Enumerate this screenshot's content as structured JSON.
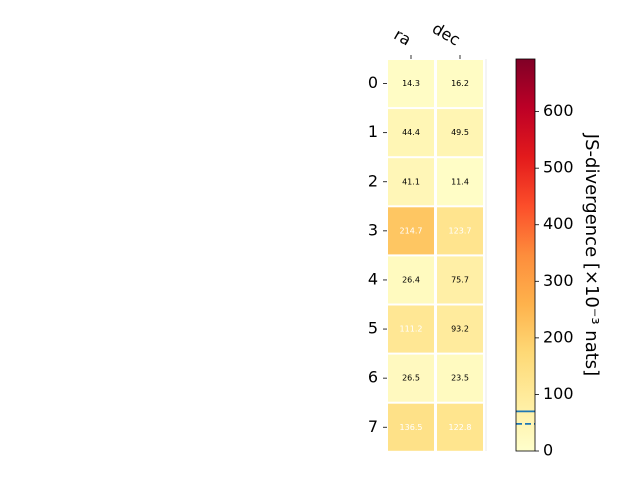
{
  "chart_data": {
    "type": "heatmap",
    "columns": [
      "ra",
      "dec"
    ],
    "rows": [
      "0",
      "1",
      "2",
      "3",
      "4",
      "5",
      "6",
      "7"
    ],
    "values": [
      [
        14.3,
        16.2
      ],
      [
        44.4,
        49.5
      ],
      [
        41.1,
        11.4
      ],
      [
        214.7,
        123.7
      ],
      [
        26.4,
        75.7
      ],
      [
        111.2,
        93.2
      ],
      [
        26.5,
        23.5
      ],
      [
        136.5,
        122.8
      ]
    ],
    "value_labels": [
      [
        "14.3",
        "16.2"
      ],
      [
        "44.4",
        "49.5"
      ],
      [
        "41.1",
        "11.4"
      ],
      [
        "214.7",
        "123.7"
      ],
      [
        "26.4",
        "75.7"
      ],
      [
        "111.2",
        "93.2"
      ],
      [
        "26.5",
        "23.5"
      ],
      [
        "136.5",
        "122.8"
      ]
    ],
    "colormap": "YlOrRd",
    "colorbar": {
      "label": "JS-divergence [×10⁻³ nats]",
      "range": [
        0,
        693
      ],
      "ticks": [
        "0",
        "100",
        "200",
        "300",
        "400",
        "500",
        "600"
      ],
      "tick_values": [
        0,
        100,
        200,
        300,
        400,
        500,
        600
      ],
      "reference_lines": [
        {
          "value": 70,
          "style": "solid",
          "color": "#1f77b4"
        },
        {
          "value": 48,
          "style": "dashed",
          "color": "#1f77b4"
        }
      ]
    },
    "text_color_threshold": 100,
    "text_colors": {
      "dark": "#000000",
      "light": "#ffffff"
    }
  }
}
